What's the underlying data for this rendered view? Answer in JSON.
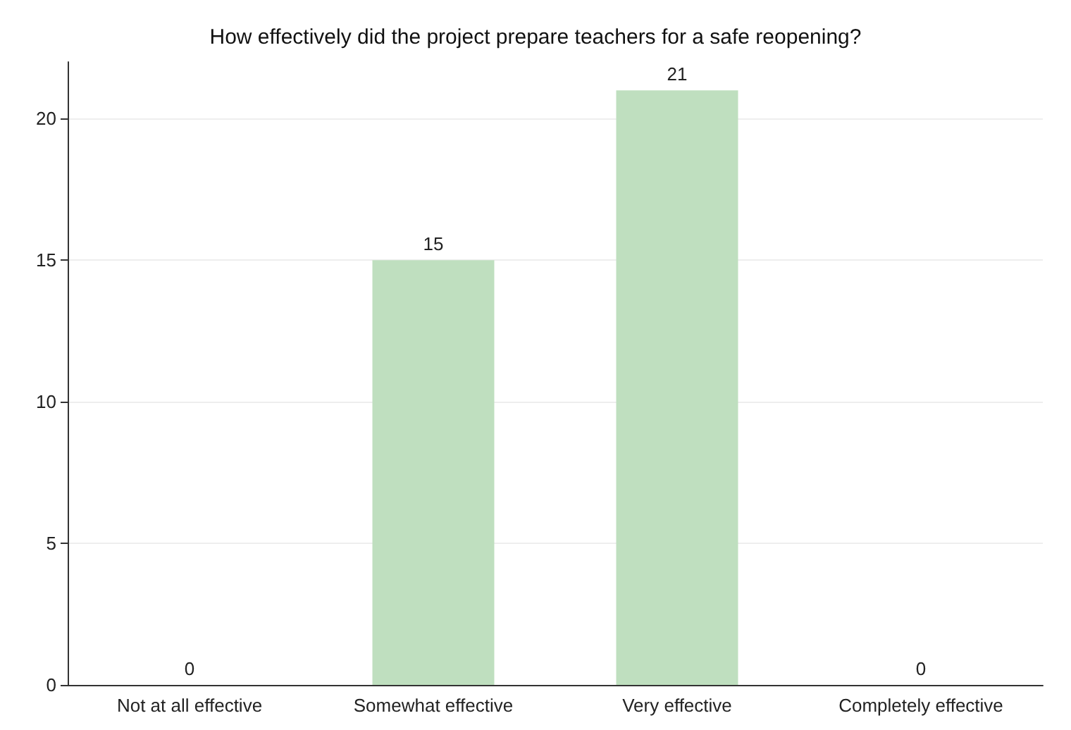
{
  "chart_data": {
    "type": "bar",
    "title": "How effectively did the project prepare teachers for a safe reopening?",
    "categories": [
      "Not at all effective",
      "Somewhat effective",
      "Very effective",
      "Completely effective"
    ],
    "values": [
      0,
      15,
      21,
      0
    ],
    "color": "#bfdfbf",
    "ylim": [
      0,
      22
    ],
    "yticks": [
      0,
      5,
      10,
      15,
      20
    ],
    "grid": "y",
    "data_labels": true
  }
}
